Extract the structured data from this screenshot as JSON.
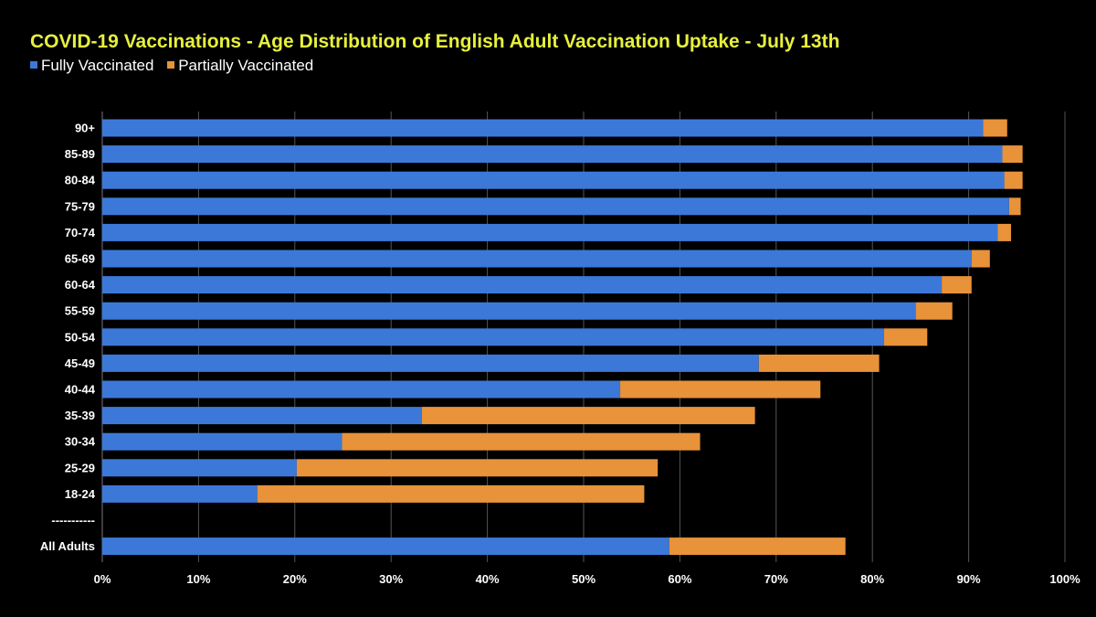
{
  "chart_data": {
    "type": "bar",
    "orientation": "horizontal",
    "stacked": true,
    "title": "COVID-19 Vaccinations - Age Distribution of English Adult Vaccination Uptake - July 13th",
    "categories": [
      "90+",
      "85-89",
      "80-84",
      "75-79",
      "70-74",
      "65-69",
      "60-64",
      "55-59",
      "50-54",
      "45-49",
      "40-44",
      "35-39",
      "30-34",
      "25-29",
      "18-24",
      "-----------",
      "All Adults"
    ],
    "series": [
      {
        "name": "Fully Vaccinated",
        "color": "#3c78d8",
        "values": [
          91.5,
          93.5,
          93.7,
          94.2,
          93.0,
          90.3,
          87.2,
          84.5,
          81.2,
          68.2,
          53.8,
          33.2,
          24.9,
          20.2,
          16.1,
          null,
          58.9
        ]
      },
      {
        "name": "Partially Vaccinated",
        "color": "#e8923a",
        "values": [
          2.5,
          2.1,
          1.9,
          1.2,
          1.4,
          1.9,
          3.1,
          3.8,
          4.5,
          12.5,
          20.8,
          34.6,
          37.2,
          37.5,
          40.2,
          null,
          18.3
        ]
      }
    ],
    "xlim": [
      0,
      100
    ],
    "xticks": [
      "0%",
      "10%",
      "20%",
      "30%",
      "40%",
      "50%",
      "60%",
      "70%",
      "80%",
      "90%",
      "100%"
    ],
    "grid": true,
    "legend_position": "top-left",
    "background": "#000000",
    "title_color": "#e6f03c"
  }
}
